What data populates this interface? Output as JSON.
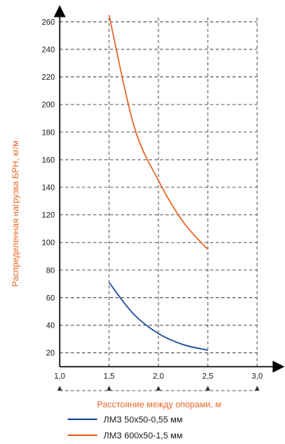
{
  "chart_data": {
    "type": "line",
    "xlabel": "Расстояние между опорами, м",
    "ylabel": "Распределенная нагрузка БРН, кг/м",
    "xlim": [
      1.0,
      3.0
    ],
    "ylim": [
      10,
      270
    ],
    "x_ticks": [
      "1,0",
      "1,5",
      "2,0",
      "2,5",
      "3,0"
    ],
    "y_ticks": [
      "20",
      "40",
      "60",
      "80",
      "100",
      "120",
      "140",
      "160",
      "180",
      "200",
      "220",
      "240",
      "260"
    ],
    "grid": true,
    "legend_position": "bottom",
    "series": [
      {
        "name": "ЛМЗ 50х50-0,55 мм",
        "color": "#1f4e9c",
        "x": [
          1.5,
          1.75,
          2.0,
          2.25,
          2.5
        ],
        "y": [
          71,
          48,
          34,
          26,
          22
        ]
      },
      {
        "name": "ЛМЗ 600х50-1,5 мм",
        "color": "#e8692a",
        "x": [
          1.5,
          1.75,
          2.0,
          2.25,
          2.5
        ],
        "y": [
          265,
          185,
          145,
          115,
          95
        ]
      }
    ]
  }
}
